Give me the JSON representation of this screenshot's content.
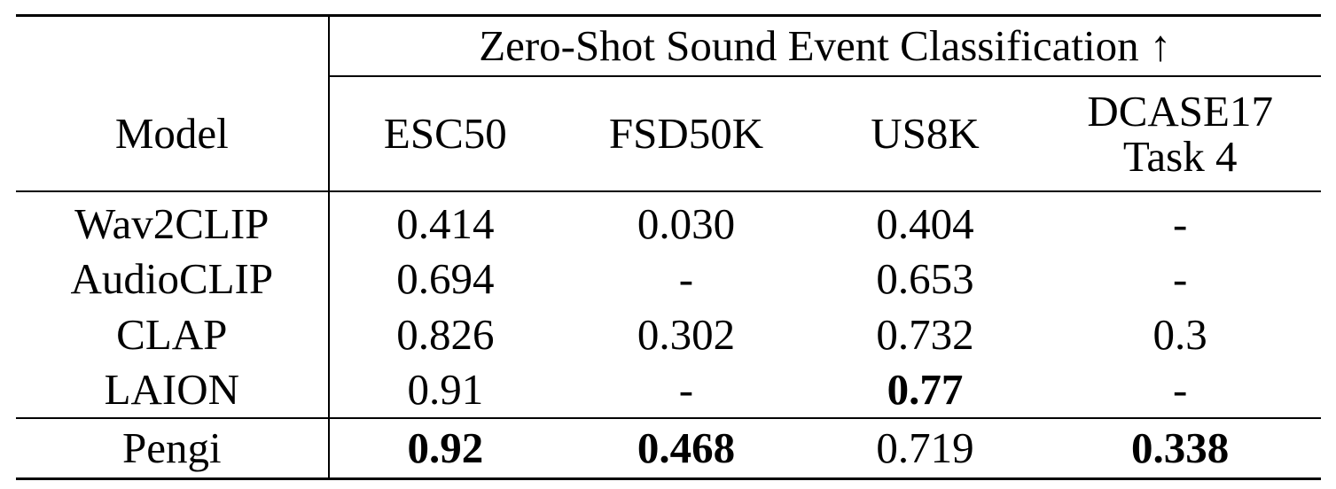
{
  "table": {
    "super_header": "Zero-Shot Sound Event Classification ↑",
    "columns": {
      "model": "Model",
      "esc50": "ESC50",
      "fsd50k": "FSD50K",
      "us8k": "US8K",
      "dcase_line1": "DCASE17",
      "dcase_line2": "Task 4"
    },
    "rows": [
      {
        "model": "Wav2CLIP",
        "esc50": "0.414",
        "fsd50k": "0.030",
        "us8k": "0.404",
        "dcase": "-"
      },
      {
        "model": "AudioCLIP",
        "esc50": "0.694",
        "fsd50k": "-",
        "us8k": "0.653",
        "dcase": "-"
      },
      {
        "model": "CLAP",
        "esc50": "0.826",
        "fsd50k": "0.302",
        "us8k": "0.732",
        "dcase": "0.3"
      },
      {
        "model": "LAION",
        "esc50": "0.91",
        "fsd50k": "-",
        "us8k": "0.77",
        "dcase": "-"
      }
    ],
    "final_row": {
      "model": "Pengi",
      "esc50": "0.92",
      "fsd50k": "0.468",
      "us8k": "0.719",
      "dcase": "0.338"
    }
  }
}
